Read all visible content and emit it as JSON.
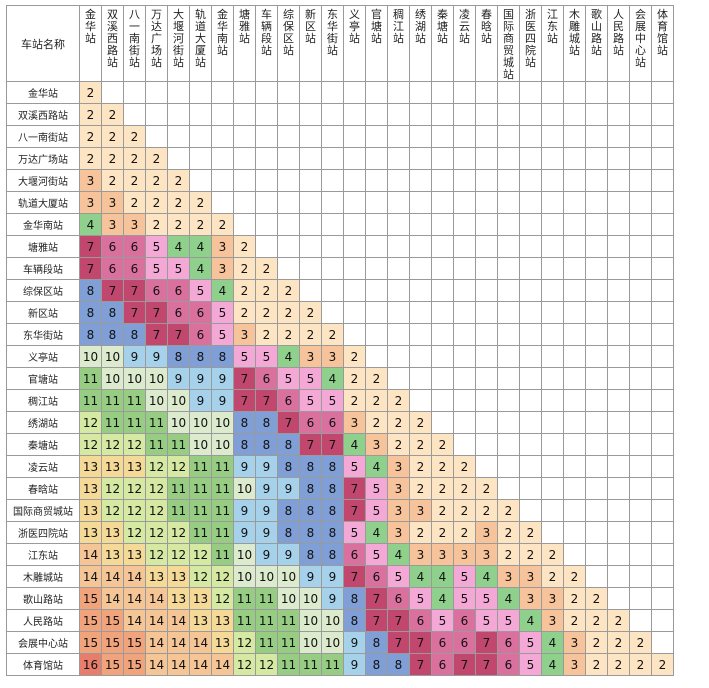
{
  "header": {
    "corner": "车站名称"
  },
  "stations": [
    "金华站",
    "双溪西路站",
    "八一南街站",
    "万达广场站",
    "大堰河街站",
    "轨道大厦站",
    "金华南站",
    "塘雅站",
    "车辆段站",
    "综保区站",
    "新区站",
    "东华街站",
    "义亭站",
    "官塘站",
    "稠江站",
    "绣湖站",
    "秦塘站",
    "凌云站",
    "春晗站",
    "国际商贸城站",
    "浙医四院站",
    "江东站",
    "木雕城站",
    "歌山路站",
    "人民路站",
    "会展中心站",
    "体育馆站"
  ],
  "fares": [
    [
      2
    ],
    [
      2,
      2
    ],
    [
      2,
      2,
      2
    ],
    [
      2,
      2,
      2,
      2
    ],
    [
      3,
      2,
      2,
      2,
      2
    ],
    [
      3,
      3,
      2,
      2,
      2,
      2
    ],
    [
      4,
      3,
      3,
      2,
      2,
      2,
      2
    ],
    [
      7,
      6,
      6,
      5,
      4,
      4,
      3,
      2
    ],
    [
      7,
      6,
      6,
      5,
      5,
      4,
      3,
      2,
      2
    ],
    [
      8,
      7,
      7,
      6,
      6,
      5,
      4,
      2,
      2,
      2
    ],
    [
      8,
      8,
      7,
      7,
      6,
      6,
      5,
      2,
      2,
      2,
      2
    ],
    [
      8,
      8,
      8,
      7,
      7,
      6,
      5,
      3,
      2,
      2,
      2,
      2
    ],
    [
      10,
      10,
      9,
      9,
      8,
      8,
      8,
      5,
      5,
      4,
      3,
      3,
      2
    ],
    [
      11,
      10,
      10,
      10,
      9,
      9,
      9,
      7,
      6,
      5,
      5,
      4,
      2,
      2
    ],
    [
      11,
      11,
      11,
      10,
      10,
      9,
      9,
      7,
      7,
      6,
      5,
      5,
      2,
      2,
      2
    ],
    [
      12,
      11,
      11,
      11,
      10,
      10,
      10,
      8,
      8,
      7,
      6,
      6,
      3,
      2,
      2,
      2
    ],
    [
      12,
      12,
      12,
      11,
      11,
      10,
      10,
      8,
      8,
      8,
      7,
      7,
      4,
      3,
      2,
      2,
      2
    ],
    [
      13,
      13,
      13,
      12,
      12,
      11,
      11,
      9,
      9,
      8,
      8,
      8,
      5,
      4,
      3,
      2,
      2,
      2
    ],
    [
      13,
      12,
      12,
      12,
      11,
      11,
      11,
      10,
      9,
      9,
      8,
      8,
      7,
      5,
      3,
      2,
      2,
      2,
      2
    ],
    [
      13,
      12,
      12,
      12,
      11,
      11,
      11,
      9,
      9,
      8,
      8,
      8,
      7,
      5,
      3,
      3,
      2,
      2,
      2,
      2
    ],
    [
      13,
      13,
      12,
      12,
      12,
      11,
      11,
      9,
      9,
      8,
      8,
      8,
      5,
      4,
      3,
      2,
      2,
      2,
      3,
      2,
      2
    ],
    [
      14,
      13,
      13,
      12,
      12,
      12,
      11,
      10,
      9,
      9,
      8,
      8,
      6,
      5,
      4,
      3,
      3,
      3,
      3,
      2,
      2,
      2
    ],
    [
      14,
      14,
      14,
      13,
      13,
      12,
      12,
      10,
      10,
      10,
      9,
      9,
      7,
      6,
      5,
      4,
      4,
      5,
      4,
      3,
      3,
      2,
      2
    ],
    [
      15,
      14,
      14,
      14,
      13,
      13,
      12,
      11,
      11,
      10,
      10,
      9,
      8,
      7,
      6,
      5,
      4,
      5,
      5,
      4,
      3,
      3,
      2,
      2
    ],
    [
      15,
      15,
      14,
      14,
      14,
      13,
      13,
      11,
      11,
      11,
      10,
      10,
      8,
      7,
      7,
      6,
      5,
      6,
      5,
      5,
      4,
      3,
      2,
      2,
      2
    ],
    [
      15,
      15,
      15,
      14,
      14,
      14,
      13,
      12,
      11,
      11,
      10,
      10,
      9,
      8,
      7,
      7,
      6,
      6,
      7,
      6,
      5,
      4,
      3,
      2,
      2,
      2
    ],
    [
      16,
      15,
      15,
      14,
      14,
      14,
      14,
      12,
      12,
      11,
      11,
      11,
      9,
      8,
      8,
      7,
      6,
      7,
      7,
      6,
      5,
      4,
      3,
      2,
      2,
      2,
      2
    ]
  ],
  "fare_colors": {
    "2": "#fde4c3",
    "3": "#f6c39a",
    "4": "#8fd18c",
    "5": "#f4a8d6",
    "6": "#d9709e",
    "7": "#c2476e",
    "8": "#7f9fd6",
    "9": "#a5d1eb",
    "10": "#dcebcd",
    "11": "#96cd83",
    "12": "#d6e9a3",
    "13": "#f4d997",
    "14": "#f6c596",
    "15": "#f1a37c",
    "16": "#e87d6c"
  }
}
